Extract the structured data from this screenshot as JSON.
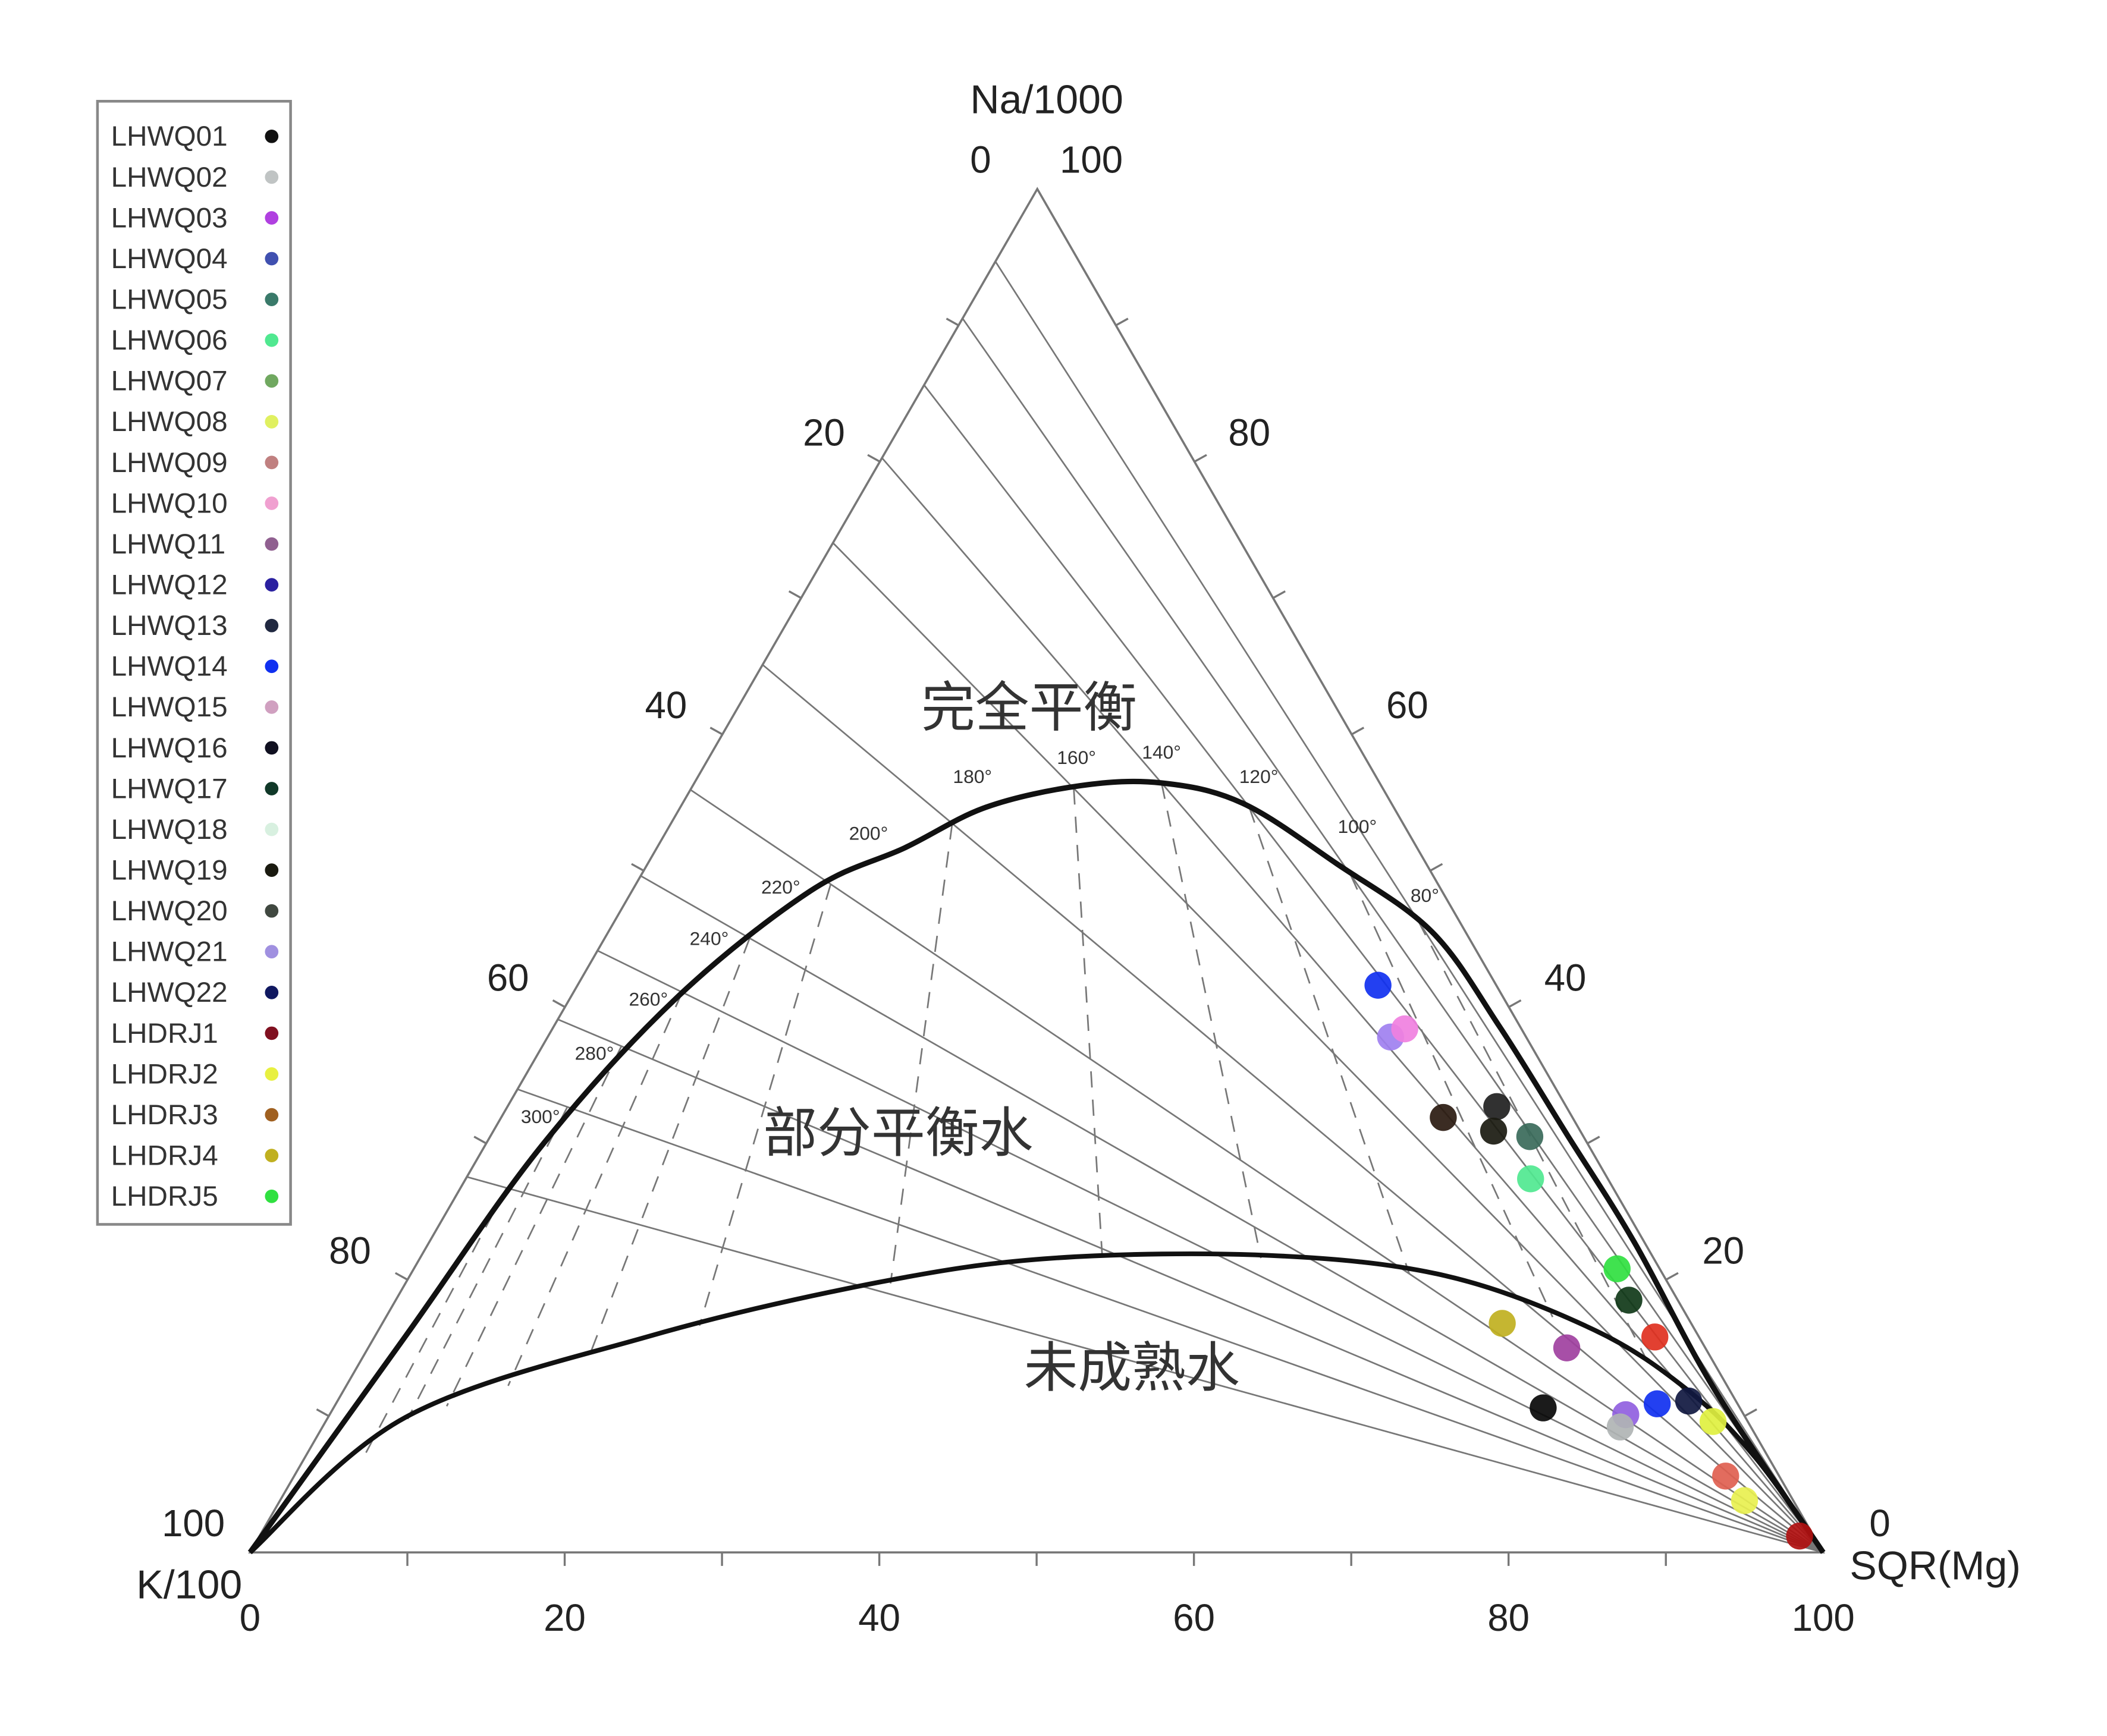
{
  "chart_data": {
    "type": "ternary-scatter",
    "axes": {
      "top": {
        "label": "Na/1000",
        "tick_zero": "0",
        "tick_hundred": "100"
      },
      "left": {
        "label": "K/100",
        "ticks": [
          "20",
          "40",
          "60",
          "80",
          "100"
        ]
      },
      "right": {
        "label": "SQR(Mg)",
        "ticks": [
          "80",
          "60",
          "40",
          "20",
          "0"
        ]
      },
      "bottom": {
        "ticks": [
          "0",
          "20",
          "40",
          "60",
          "80",
          "100"
        ]
      }
    },
    "zones": {
      "full_equilibrium": "完全平衡",
      "partial_equilibrium": "部分平衡水",
      "immature": "未成熟水"
    },
    "isotherm_labels": [
      "300°",
      "280°",
      "260°",
      "240°",
      "220°",
      "200°",
      "180°",
      "160°",
      "140°",
      "120°",
      "100°",
      "80°"
    ],
    "legend": [
      {
        "name": "LHWQ01",
        "color": "#111111"
      },
      {
        "name": "LHWQ02",
        "color": "#c0c4c4"
      },
      {
        "name": "LHWQ03",
        "color": "#b040e0"
      },
      {
        "name": "LHWQ04",
        "color": "#4050b0"
      },
      {
        "name": "LHWQ05",
        "color": "#3a7a6a"
      },
      {
        "name": "LHWQ06",
        "color": "#50e890"
      },
      {
        "name": "LHWQ07",
        "color": "#70a860"
      },
      {
        "name": "LHWQ08",
        "color": "#e0f060"
      },
      {
        "name": "LHWQ09",
        "color": "#c08080"
      },
      {
        "name": "LHWQ10",
        "color": "#f0a0d0"
      },
      {
        "name": "LHWQ11",
        "color": "#906090"
      },
      {
        "name": "LHWQ12",
        "color": "#2a20a0"
      },
      {
        "name": "LHWQ13",
        "color": "#202840"
      },
      {
        "name": "LHWQ14",
        "color": "#1030f0"
      },
      {
        "name": "LHWQ15",
        "color": "#d0a0c0"
      },
      {
        "name": "LHWQ16",
        "color": "#101020"
      },
      {
        "name": "LHWQ17",
        "color": "#103828"
      },
      {
        "name": "LHWQ18",
        "color": "#d8f0e0"
      },
      {
        "name": "LHWQ19",
        "color": "#1a1a10"
      },
      {
        "name": "LHWQ20",
        "color": "#404840"
      },
      {
        "name": "LHWQ21",
        "color": "#a090e0"
      },
      {
        "name": "LHWQ22",
        "color": "#101860"
      },
      {
        "name": "LHDRJ1",
        "color": "#801020"
      },
      {
        "name": "LHDRJ2",
        "color": "#e8f040"
      },
      {
        "name": "LHDRJ3",
        "color": "#a06020"
      },
      {
        "name": "LHDRJ4",
        "color": "#c0b020"
      },
      {
        "name": "LHDRJ5",
        "color": "#30e040"
      }
    ],
    "points": [
      {
        "na": 41.6,
        "k": 7.5,
        "mg": 50.9,
        "color": "#1030f0"
      },
      {
        "na": 37.8,
        "k": 8.6,
        "mg": 53.6,
        "color": "#a080f0"
      },
      {
        "na": 38.4,
        "k": 7.4,
        "mg": 54.2,
        "color": "#f080e0"
      },
      {
        "na": 31.9,
        "k": 8.2,
        "mg": 59.9,
        "color": "#2a1a10"
      },
      {
        "na": 32.7,
        "k": 4.4,
        "mg": 62.9,
        "color": "#202020"
      },
      {
        "na": 30.9,
        "k": 5.5,
        "mg": 63.6,
        "color": "#1a1a10"
      },
      {
        "na": 30.5,
        "k": 3.4,
        "mg": 66.1,
        "color": "#3a6a5a"
      },
      {
        "na": 27.4,
        "k": 4.9,
        "mg": 67.7,
        "color": "#50e890"
      },
      {
        "na": 20.8,
        "k": 2.7,
        "mg": 76.5,
        "color": "#30e040"
      },
      {
        "na": 18.5,
        "k": 3.1,
        "mg": 78.4,
        "color": "#103818"
      },
      {
        "na": 15.8,
        "k": 2.8,
        "mg": 81.4,
        "color": "#e03020"
      },
      {
        "na": 16.8,
        "k": 12.0,
        "mg": 71.2,
        "color": "#c0b020"
      },
      {
        "na": 15.0,
        "k": 8.8,
        "mg": 76.2,
        "color": "#a040a0"
      },
      {
        "na": 10.6,
        "k": 12.5,
        "mg": 76.9,
        "color": "#080808"
      },
      {
        "na": 10.1,
        "k": 7.5,
        "mg": 82.4,
        "color": "#9060e0"
      },
      {
        "na": 9.2,
        "k": 8.3,
        "mg": 82.5,
        "color": "#b0b4b4"
      },
      {
        "na": 10.9,
        "k": 5.1,
        "mg": 84.0,
        "color": "#1030f0"
      },
      {
        "na": 11.1,
        "k": 3.0,
        "mg": 85.9,
        "color": "#101840"
      },
      {
        "na": 9.6,
        "k": 2.2,
        "mg": 88.2,
        "color": "#e0f040"
      },
      {
        "na": 5.6,
        "k": 3.4,
        "mg": 91.0,
        "color": "#e06050"
      },
      {
        "na": 3.8,
        "k": 3.1,
        "mg": 93.1,
        "color": "#e8f050"
      },
      {
        "na": 1.2,
        "k": 0.9,
        "mg": 97.9,
        "color": "#b01010"
      }
    ]
  }
}
